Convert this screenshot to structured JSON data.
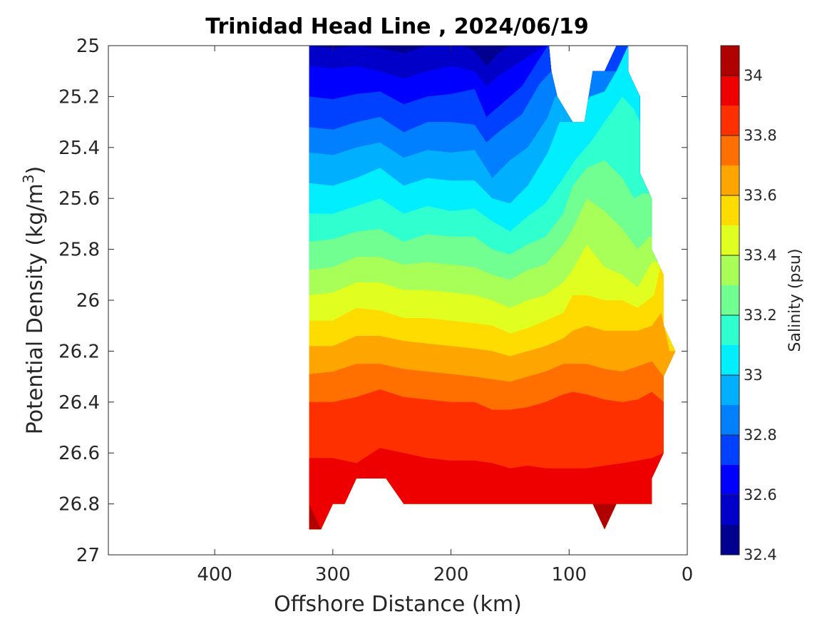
{
  "chart_data": {
    "type": "heatmap",
    "title": "Trinidad Head Line , 2024/06/19",
    "xlabel": "Offshore Distance (km)",
    "ylabel": "Potential Density (kg/m",
    "ylabel_superscript": "3",
    "ylabel_close": ")",
    "colorbar_label": "Salinity (psu)",
    "x_reversed": true,
    "xlim": [
      490,
      0
    ],
    "ylim": [
      25,
      27
    ],
    "y_reversed": true,
    "xticks": [
      "400",
      "300",
      "200",
      "100",
      "0"
    ],
    "xtick_values": [
      400,
      300,
      200,
      100,
      0
    ],
    "yticks": [
      "25",
      "25.2",
      "25.4",
      "25.6",
      "25.8",
      "26",
      "26.2",
      "26.4",
      "26.6",
      "26.8",
      "27"
    ],
    "ytick_values": [
      25,
      25.2,
      25.4,
      25.6,
      25.8,
      26,
      26.2,
      26.4,
      26.6,
      26.8,
      27
    ],
    "colorbar_range": [
      32.4,
      34.1
    ],
    "colorbar_ticks": [
      "32.4",
      "32.6",
      "32.8",
      "33",
      "33.2",
      "33.4",
      "33.6",
      "33.8",
      "34"
    ],
    "colorbar_tick_values": [
      32.4,
      32.6,
      32.8,
      33.0,
      33.2,
      33.4,
      33.6,
      33.8,
      34.0
    ],
    "levels": [
      {
        "min": 32.4,
        "max": 32.5,
        "color": "#00008f"
      },
      {
        "min": 32.5,
        "max": 32.6,
        "color": "#0000c8"
      },
      {
        "min": 32.6,
        "max": 32.7,
        "color": "#0000ff"
      },
      {
        "min": 32.7,
        "max": 32.8,
        "color": "#0040ff"
      },
      {
        "min": 32.8,
        "max": 32.9,
        "color": "#0080ff"
      },
      {
        "min": 32.9,
        "max": 33.0,
        "color": "#00b0ff"
      },
      {
        "min": 33.0,
        "max": 33.1,
        "color": "#00eeff"
      },
      {
        "min": 33.1,
        "max": 33.2,
        "color": "#30ffd0"
      },
      {
        "min": 33.2,
        "max": 33.3,
        "color": "#70ff90"
      },
      {
        "min": 33.3,
        "max": 33.4,
        "color": "#a8ff58"
      },
      {
        "min": 33.4,
        "max": 33.5,
        "color": "#e0ff20"
      },
      {
        "min": 33.5,
        "max": 33.6,
        "color": "#ffdc00"
      },
      {
        "min": 33.6,
        "max": 33.7,
        "color": "#ffa500"
      },
      {
        "min": 33.7,
        "max": 33.8,
        "color": "#ff7000"
      },
      {
        "min": 33.8,
        "max": 33.9,
        "color": "#ff3000"
      },
      {
        "min": 33.9,
        "max": 34.0,
        "color": "#ee0000"
      },
      {
        "min": 34.0,
        "max": 34.1,
        "color": "#b00000"
      }
    ],
    "stations_km": [
      320,
      310,
      300,
      290,
      280,
      270,
      260,
      250,
      240,
      230,
      220,
      210,
      200,
      190,
      180,
      170,
      160,
      150,
      140,
      130,
      120,
      110,
      100,
      90,
      80,
      70,
      60,
      50,
      40,
      30,
      20
    ],
    "isohalines": [
      {
        "value": 32.5,
        "x": [
          320,
          300,
          280,
          260,
          240,
          220,
          200,
          190,
          180,
          170,
          160,
          150
        ],
        "y": [
          25.0,
          25.01,
          25.0,
          25.01,
          25.03,
          25.0,
          25.0,
          25.0,
          25.02,
          25.08,
          25.03,
          25.0
        ]
      },
      {
        "value": 32.6,
        "x": [
          320,
          300,
          280,
          260,
          240,
          220,
          200,
          180,
          170,
          160,
          140,
          120
        ],
        "y": [
          25.08,
          25.09,
          25.08,
          25.1,
          25.13,
          25.1,
          25.08,
          25.1,
          25.16,
          25.12,
          25.06,
          25.0
        ]
      },
      {
        "value": 32.7,
        "x": [
          320,
          300,
          280,
          260,
          240,
          220,
          200,
          180,
          170,
          160,
          140,
          125,
          118
        ],
        "y": [
          25.2,
          25.21,
          25.19,
          25.18,
          25.23,
          25.2,
          25.19,
          25.17,
          25.28,
          25.24,
          25.16,
          25.05,
          25.0
        ]
      },
      {
        "value": 32.8,
        "x": [
          320,
          300,
          280,
          260,
          240,
          220,
          200,
          180,
          170,
          160,
          140,
          125,
          115
        ],
        "y": [
          25.32,
          25.33,
          25.3,
          25.28,
          25.34,
          25.3,
          25.3,
          25.31,
          25.38,
          25.34,
          25.27,
          25.15,
          25.1
        ]
      },
      {
        "value": 32.9,
        "x": [
          320,
          300,
          280,
          260,
          240,
          220,
          200,
          180,
          165,
          150,
          135,
          118,
          112
        ],
        "y": [
          25.42,
          25.43,
          25.4,
          25.38,
          25.44,
          25.41,
          25.42,
          25.41,
          25.52,
          25.45,
          25.4,
          25.28,
          25.2
        ]
      },
      {
        "value": 33.0,
        "x": [
          320,
          300,
          280,
          260,
          240,
          220,
          200,
          180,
          165,
          150,
          135,
          118,
          108,
          95,
          82,
          70,
          60,
          50
        ],
        "y": [
          25.54,
          25.55,
          25.52,
          25.48,
          25.55,
          25.52,
          25.53,
          25.53,
          25.6,
          25.62,
          25.55,
          25.42,
          25.3,
          25.3,
          25.2,
          25.18,
          25.1,
          25.0
        ]
      },
      {
        "value": 33.1,
        "x": [
          320,
          300,
          280,
          260,
          240,
          220,
          200,
          180,
          165,
          150,
          135,
          120,
          105,
          95,
          82,
          70,
          55,
          45,
          40
        ],
        "y": [
          25.66,
          25.66,
          25.63,
          25.6,
          25.66,
          25.63,
          25.65,
          25.64,
          25.69,
          25.73,
          25.67,
          25.62,
          25.52,
          25.45,
          25.38,
          25.3,
          25.2,
          25.25,
          25.3
        ]
      },
      {
        "value": 33.2,
        "x": [
          320,
          300,
          280,
          260,
          240,
          220,
          200,
          180,
          165,
          150,
          135,
          120,
          105,
          97,
          85,
          70,
          55,
          45,
          38
        ],
        "y": [
          25.77,
          25.76,
          25.73,
          25.72,
          25.77,
          25.74,
          25.75,
          25.75,
          25.8,
          25.82,
          25.78,
          25.75,
          25.66,
          25.55,
          25.48,
          25.45,
          25.52,
          25.6,
          25.58
        ]
      },
      {
        "value": 33.3,
        "x": [
          320,
          300,
          280,
          260,
          240,
          220,
          200,
          180,
          165,
          150,
          135,
          120,
          105,
          97,
          85,
          70,
          55,
          42,
          32
        ],
        "y": [
          25.88,
          25.87,
          25.83,
          25.83,
          25.86,
          25.85,
          25.86,
          25.87,
          25.9,
          25.92,
          25.88,
          25.86,
          25.78,
          25.72,
          25.6,
          25.65,
          25.72,
          25.8,
          25.75
        ]
      },
      {
        "value": 33.4,
        "x": [
          320,
          300,
          280,
          260,
          240,
          220,
          200,
          180,
          165,
          150,
          135,
          120,
          105,
          97,
          85,
          70,
          55,
          42,
          30
        ],
        "y": [
          25.98,
          25.97,
          25.93,
          25.93,
          25.96,
          25.96,
          25.97,
          25.98,
          26.0,
          26.03,
          26.0,
          25.98,
          25.93,
          25.88,
          25.78,
          25.87,
          25.9,
          25.95,
          25.85
        ]
      },
      {
        "value": 33.5,
        "x": [
          320,
          300,
          280,
          260,
          240,
          220,
          200,
          180,
          165,
          150,
          135,
          120,
          105,
          97,
          85,
          70,
          55,
          42,
          28,
          22
        ],
        "y": [
          26.08,
          26.08,
          26.03,
          26.04,
          26.07,
          26.07,
          26.08,
          26.09,
          26.1,
          26.13,
          26.11,
          26.08,
          26.05,
          25.98,
          25.98,
          26.0,
          26.0,
          26.03,
          25.98,
          25.85
        ]
      },
      {
        "value": 33.6,
        "x": [
          320,
          300,
          280,
          260,
          240,
          220,
          200,
          180,
          165,
          150,
          135,
          120,
          105,
          97,
          85,
          70,
          55,
          42,
          30,
          22,
          15
        ],
        "y": [
          26.18,
          26.18,
          26.14,
          26.14,
          26.16,
          26.17,
          26.18,
          26.19,
          26.2,
          26.22,
          26.2,
          26.18,
          26.15,
          26.12,
          26.1,
          26.12,
          26.12,
          26.12,
          26.1,
          26.05,
          26.2
        ]
      },
      {
        "value": 33.7,
        "x": [
          320,
          300,
          280,
          260,
          240,
          220,
          200,
          180,
          165,
          150,
          135,
          120,
          105,
          97,
          85,
          70,
          55,
          42,
          30,
          20
        ],
        "y": [
          26.29,
          26.28,
          26.25,
          26.25,
          26.27,
          26.28,
          26.29,
          26.3,
          26.31,
          26.32,
          26.3,
          26.28,
          26.25,
          26.25,
          26.25,
          26.27,
          26.28,
          26.26,
          26.24,
          26.3
        ]
      },
      {
        "value": 33.8,
        "x": [
          320,
          300,
          280,
          260,
          240,
          220,
          200,
          180,
          165,
          150,
          135,
          120,
          105,
          97,
          85,
          70,
          55,
          42,
          30,
          20
        ],
        "y": [
          26.4,
          26.4,
          26.38,
          26.35,
          26.38,
          26.39,
          26.4,
          26.4,
          26.43,
          26.43,
          26.42,
          26.4,
          26.37,
          26.36,
          26.37,
          26.39,
          26.4,
          26.39,
          26.36,
          26.4
        ]
      },
      {
        "value": 33.9,
        "x": [
          320,
          300,
          280,
          260,
          240,
          220,
          200,
          180,
          165,
          150,
          135,
          120,
          105,
          97,
          85,
          70,
          55,
          42,
          30,
          20
        ],
        "y": [
          26.62,
          26.62,
          26.64,
          26.58,
          26.6,
          26.62,
          26.63,
          26.63,
          26.64,
          26.66,
          26.65,
          26.66,
          26.66,
          26.66,
          26.66,
          26.65,
          26.64,
          26.63,
          26.62,
          26.6
        ]
      }
    ],
    "outline": {
      "x": [
        320,
        320,
        310,
        300,
        290,
        280,
        255,
        240,
        180,
        170,
        150,
        100,
        80,
        70,
        60,
        30,
        30,
        20,
        20,
        10,
        20,
        20,
        30,
        30,
        40,
        40,
        50,
        50,
        60,
        70,
        80,
        87,
        97,
        110,
        115,
        117
      ],
      "y": [
        25.0,
        26.9,
        26.9,
        26.8,
        26.8,
        26.7,
        26.7,
        26.8,
        26.8,
        26.8,
        26.8,
        26.8,
        26.8,
        26.9,
        26.8,
        26.8,
        26.7,
        26.6,
        26.3,
        26.2,
        26.1,
        25.9,
        25.8,
        25.6,
        25.5,
        25.2,
        25.1,
        25.0,
        25.0,
        25.1,
        25.1,
        25.3,
        25.3,
        25.2,
        25.1,
        25.0
      ]
    }
  }
}
